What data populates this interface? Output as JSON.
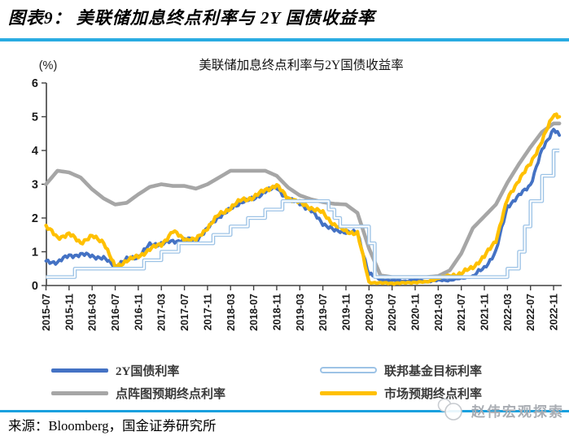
{
  "header": {
    "title": "图表9： 美联储加息终点利率与 2Y 国债收益率"
  },
  "footer": {
    "source": "来源：Bloomberg，国金证券研究所"
  },
  "watermark": {
    "text": "赵伟宏观探索",
    "icon": "two-circles-logo"
  },
  "colors": {
    "accent_rule_top": "#29ABE2",
    "accent_rule_bottom": "#19A0DE",
    "axis": "#404040",
    "blue_2y": "#4472C4",
    "fed_funds_light_blue": "#9DC3E6",
    "dot_plot_gray": "#A6A6A6",
    "market_yellow": "#FFC000"
  },
  "chart_data": {
    "type": "line",
    "title": "美联储加息终点利率与2Y国债收益率",
    "y_unit": "(%)",
    "ylim": [
      0,
      6
    ],
    "yticks": [
      0,
      1,
      2,
      3,
      4,
      5,
      6
    ],
    "grid": false,
    "legend_position": "bottom",
    "x_start": "2015-07",
    "x_end": "2022-12",
    "x_tick_labels": [
      "2015-07",
      "2015-11",
      "2016-03",
      "2016-07",
      "2016-11",
      "2017-03",
      "2017-07",
      "2017-11",
      "2018-03",
      "2018-07",
      "2018-11",
      "2019-03",
      "2019-07",
      "2019-11",
      "2020-03",
      "2020-07",
      "2020-11",
      "2021-03",
      "2021-07",
      "2021-11",
      "2022-03",
      "2022-07",
      "2022-11"
    ],
    "sample_months": [
      "2015-07",
      "2015-09",
      "2015-11",
      "2016-01",
      "2016-03",
      "2016-05",
      "2016-07",
      "2016-09",
      "2016-11",
      "2017-01",
      "2017-03",
      "2017-05",
      "2017-07",
      "2017-09",
      "2017-11",
      "2018-01",
      "2018-03",
      "2018-05",
      "2018-07",
      "2018-09",
      "2018-11",
      "2019-01",
      "2019-03",
      "2019-05",
      "2019-07",
      "2019-09",
      "2019-11",
      "2020-01",
      "2020-03",
      "2020-05",
      "2020-07",
      "2020-09",
      "2020-11",
      "2021-01",
      "2021-03",
      "2021-05",
      "2021-07",
      "2021-09",
      "2021-11",
      "2022-01",
      "2022-03",
      "2022-05",
      "2022-07",
      "2022-09",
      "2022-11",
      "2022-12"
    ],
    "series": [
      {
        "id": "2y-treasury",
        "name": "2Y国债利率",
        "color": "#4472C4",
        "kind": "line",
        "noisy": true,
        "width": 3.8,
        "values": [
          0.7,
          0.7,
          0.88,
          0.92,
          0.88,
          0.8,
          0.58,
          0.77,
          0.86,
          1.2,
          1.25,
          1.3,
          1.36,
          1.35,
          1.68,
          2.05,
          2.25,
          2.5,
          2.55,
          2.8,
          2.9,
          2.55,
          2.45,
          2.2,
          1.85,
          1.62,
          1.6,
          1.55,
          0.35,
          0.17,
          0.15,
          0.13,
          0.16,
          0.12,
          0.15,
          0.16,
          0.21,
          0.28,
          0.52,
          1.0,
          2.35,
          2.65,
          3.0,
          4.0,
          4.65,
          4.45
        ]
      },
      {
        "id": "fed-funds-target",
        "name": "联邦基金目标利率",
        "color": "#9DC3E6",
        "kind": "step-hollow",
        "noisy": false,
        "width": 4.6,
        "steps": [
          [
            "2015-07",
            0.25
          ],
          [
            "2015-12",
            0.5
          ],
          [
            "2016-12",
            0.75
          ],
          [
            "2017-03",
            1.0
          ],
          [
            "2017-06",
            1.25
          ],
          [
            "2017-12",
            1.5
          ],
          [
            "2018-03",
            1.75
          ],
          [
            "2018-06",
            2.0
          ],
          [
            "2018-09",
            2.25
          ],
          [
            "2018-12",
            2.5
          ],
          [
            "2019-08",
            2.25
          ],
          [
            "2019-09",
            2.0
          ],
          [
            "2019-10",
            1.75
          ],
          [
            "2020-03",
            1.25
          ],
          [
            "2020-04",
            0.25
          ],
          [
            "2022-03",
            0.5
          ],
          [
            "2022-05",
            1.0
          ],
          [
            "2022-06",
            1.75
          ],
          [
            "2022-07",
            2.5
          ],
          [
            "2022-09",
            3.25
          ],
          [
            "2022-11",
            4.0
          ]
        ]
      },
      {
        "id": "dot-plot-terminal",
        "name": "点阵图预期终点利率",
        "color": "#A6A6A6",
        "kind": "line",
        "noisy": false,
        "width": 4.6,
        "values": [
          3.0,
          3.4,
          3.35,
          3.2,
          2.85,
          2.58,
          2.4,
          2.45,
          2.7,
          2.92,
          3.0,
          2.95,
          2.95,
          2.87,
          3.0,
          3.2,
          3.4,
          3.4,
          3.4,
          3.4,
          3.25,
          2.9,
          2.67,
          2.55,
          2.47,
          2.42,
          2.4,
          2.15,
          1.1,
          0.3,
          0.25,
          0.25,
          0.25,
          0.25,
          0.28,
          0.45,
          0.95,
          1.7,
          2.05,
          2.4,
          3.05,
          3.6,
          4.1,
          4.55,
          4.8,
          4.8
        ]
      },
      {
        "id": "market-terminal",
        "name": "市场预期终点利率",
        "color": "#FFC000",
        "kind": "line",
        "noisy": true,
        "width": 4.2,
        "values": [
          1.75,
          1.42,
          1.52,
          1.28,
          1.45,
          1.3,
          0.52,
          0.75,
          0.85,
          1.08,
          1.22,
          1.6,
          1.38,
          1.35,
          1.72,
          2.1,
          2.3,
          2.55,
          2.6,
          2.85,
          2.95,
          2.6,
          2.45,
          2.3,
          2.15,
          1.8,
          1.6,
          1.55,
          0.1,
          0.07,
          0.07,
          0.07,
          0.1,
          0.1,
          0.22,
          0.3,
          0.35,
          0.55,
          0.85,
          1.35,
          2.55,
          3.15,
          3.6,
          4.3,
          5.05,
          5.0
        ]
      }
    ],
    "draw_order": [
      2,
      0,
      3,
      1
    ]
  }
}
